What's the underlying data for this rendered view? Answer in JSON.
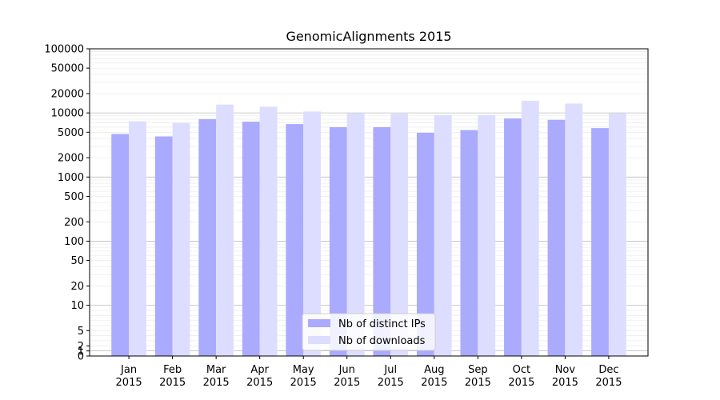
{
  "chart_data": {
    "type": "bar",
    "title": "GenomicAlignments 2015",
    "xlabel": "",
    "ylabel": "",
    "yscale": "log",
    "ylim": [
      0,
      100000
    ],
    "y_tick_labels": [
      "0",
      "1",
      "2",
      "5",
      "10",
      "20",
      "50",
      "100",
      "200",
      "500",
      "1000",
      "2000",
      "5000",
      "10000",
      "20000",
      "50000",
      "100000"
    ],
    "categories": [
      "Jan\n2015",
      "Feb\n2015",
      "Mar\n2015",
      "Apr\n2015",
      "May\n2015",
      "Jun\n2015",
      "Jul\n2015",
      "Aug\n2015",
      "Sep\n2015",
      "Oct\n2015",
      "Nov\n2015",
      "Dec\n2015"
    ],
    "category_lines": [
      [
        "Jan",
        "2015"
      ],
      [
        "Feb",
        "2015"
      ],
      [
        "Mar",
        "2015"
      ],
      [
        "Apr",
        "2015"
      ],
      [
        "May",
        "2015"
      ],
      [
        "Jun",
        "2015"
      ],
      [
        "Jul",
        "2015"
      ],
      [
        "Aug",
        "2015"
      ],
      [
        "Sep",
        "2015"
      ],
      [
        "Oct",
        "2015"
      ],
      [
        "Nov",
        "2015"
      ],
      [
        "Dec",
        "2015"
      ]
    ],
    "series": [
      {
        "name": "Nb of distinct IPs",
        "color": "#aaaaff",
        "values": [
          4700,
          4300,
          8000,
          7300,
          6700,
          6000,
          6000,
          4900,
          5400,
          8200,
          7800,
          5800
        ]
      },
      {
        "name": "Nb of downloads",
        "color": "#ddddff",
        "values": [
          7400,
          7000,
          13500,
          12500,
          10500,
          9800,
          9700,
          9300,
          9300,
          15500,
          14000,
          9800
        ]
      }
    ],
    "grid": true,
    "legend_position": "bottom-center"
  }
}
